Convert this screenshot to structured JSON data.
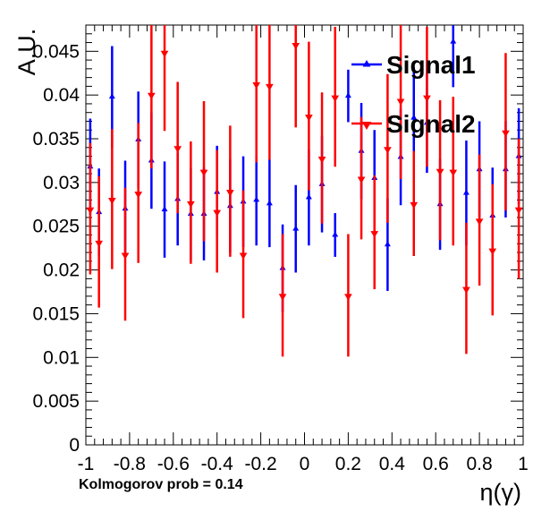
{
  "chart_data": {
    "type": "scatter",
    "xlabel": "η(γ)",
    "ylabel": "A.U.",
    "xlim": [
      -1,
      1
    ],
    "ylim": [
      0,
      0.048
    ],
    "grid": false,
    "legend_placement": "top-right",
    "x_ticks": [
      "-1",
      "-0.8",
      "-0.6",
      "-0.4",
      "-0.2",
      "0",
      "0.2",
      "0.4",
      "0.6",
      "0.8",
      "1"
    ],
    "y_ticks": [
      "0",
      "0.005",
      "0.01",
      "0.015",
      "0.02",
      "0.025",
      "0.03",
      "0.035",
      "0.04",
      "0.045"
    ],
    "annotation": "Kolmogorov prob = 0.14",
    "series": [
      {
        "name": "Signal1",
        "color": "#0000ff",
        "marker": "triangle-up",
        "x": [
          -0.98,
          -0.94,
          -0.88,
          -0.82,
          -0.76,
          -0.7,
          -0.64,
          -0.58,
          -0.52,
          -0.46,
          -0.4,
          -0.34,
          -0.28,
          -0.22,
          -0.16,
          -0.1,
          -0.04,
          0.02,
          0.08,
          0.14,
          0.2,
          0.26,
          0.32,
          0.38,
          0.44,
          0.5,
          0.56,
          0.62,
          0.68,
          0.74,
          0.8,
          0.86,
          0.92,
          0.98
        ],
        "y": [
          0.0318,
          0.0266,
          0.0398,
          0.027,
          0.0349,
          0.0325,
          0.0269,
          0.0281,
          0.0264,
          0.0264,
          0.0289,
          0.0273,
          0.0278,
          0.028,
          0.0276,
          0.0202,
          0.0247,
          0.0283,
          0.0298,
          0.024,
          0.0399,
          0.0336,
          0.0305,
          0.0229,
          0.0329,
          0.0374,
          0.0368,
          0.0275,
          0.0461,
          0.0288,
          0.0315,
          0.0262,
          0.0315,
          0.033
        ],
        "err": [
          0.0055,
          0.005,
          0.0058,
          0.0055,
          0.0055,
          0.0055,
          0.0055,
          0.0053,
          0.0053,
          0.0053,
          0.0053,
          0.0053,
          0.0052,
          0.0052,
          0.005,
          0.005,
          0.005,
          0.0055,
          0.0055,
          0.0025,
          0.003,
          0.0055,
          0.0055,
          0.0053,
          0.0055,
          0.0058,
          0.0057,
          0.0052,
          0.0052,
          0.006,
          0.0055,
          0.0055,
          0.0055,
          0.0055
        ]
      },
      {
        "name": "Signal2",
        "color": "#ff0000",
        "marker": "triangle-down",
        "x": [
          -0.98,
          -0.94,
          -0.88,
          -0.82,
          -0.76,
          -0.7,
          -0.64,
          -0.58,
          -0.52,
          -0.46,
          -0.4,
          -0.34,
          -0.28,
          -0.22,
          -0.16,
          -0.1,
          -0.04,
          0.02,
          0.08,
          0.14,
          0.2,
          0.26,
          0.32,
          0.38,
          0.44,
          0.5,
          0.56,
          0.62,
          0.68,
          0.74,
          0.8,
          0.86,
          0.92,
          0.98
        ],
        "y": [
          0.027,
          0.0232,
          0.0281,
          0.0218,
          0.0288,
          0.0401,
          0.0449,
          0.034,
          0.0277,
          0.0313,
          0.0267,
          0.029,
          0.0218,
          0.0413,
          0.0411,
          0.0171,
          0.0458,
          0.0376,
          0.0328,
          0.0398,
          0.0171,
          0.0305,
          0.0243,
          0.0339,
          0.0394,
          0.0276,
          0.0398,
          0.0314,
          0.0313,
          0.0179,
          0.0257,
          0.0223,
          0.0358,
          0.027
        ],
        "err": [
          0.0075,
          0.0075,
          0.008,
          0.0076,
          0.008,
          0.0085,
          0.009,
          0.0075,
          0.007,
          0.008,
          0.007,
          0.0075,
          0.0073,
          0.009,
          0.0085,
          0.007,
          0.0095,
          0.0085,
          0.0075,
          0.008,
          0.007,
          0.007,
          0.0065,
          0.0085,
          0.009,
          0.006,
          0.008,
          0.008,
          0.0085,
          0.0075,
          0.0075,
          0.0075,
          0.009,
          0.008
        ]
      }
    ]
  }
}
